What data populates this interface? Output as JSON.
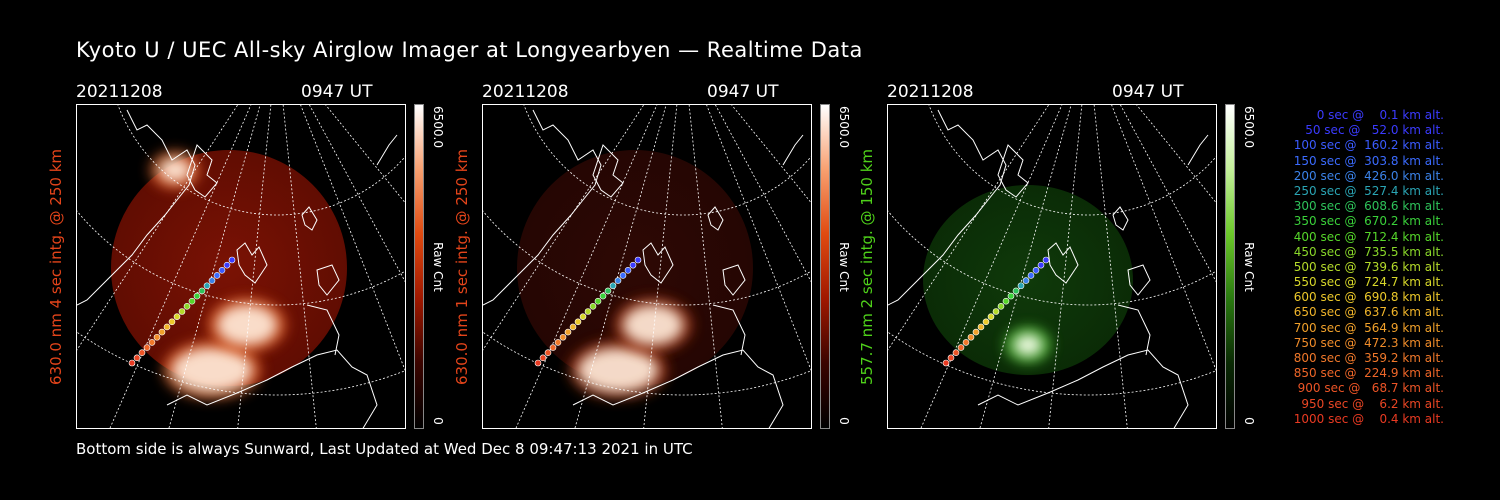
{
  "title": "Kyoto U / UEC All-sky Airglow Imager at Longyearbyen — Realtime Data",
  "footer": "Bottom side is always Sunward, Last Updated at Wed Dec  8 09:47:13 2021 in UTC",
  "panels": [
    {
      "date": "20211208",
      "time": "0947 UT",
      "ylabel": "630.0 nm 4 sec intg. @ 250 km",
      "ylabel_color": "#e4441a",
      "cbar_max": "6500.0",
      "cbar_min": "0",
      "cbar_unit": "Raw Cnt",
      "theme": "red"
    },
    {
      "date": "20211208",
      "time": "0947 UT",
      "ylabel": "630.0 nm 1 sec intg. @ 250 km",
      "ylabel_color": "#e4441a",
      "cbar_max": "6500.0",
      "cbar_min": "0",
      "cbar_unit": "Raw Cnt",
      "theme": "darkred"
    },
    {
      "date": "20211208",
      "time": "0947 UT",
      "ylabel": "557.7 nm 2 sec intg. @ 150 km",
      "ylabel_color": "#4fd11a",
      "cbar_max": "6500.0",
      "cbar_min": "0",
      "cbar_unit": "Raw Cnt",
      "theme": "green"
    }
  ],
  "legend": [
    {
      "text": "0 sec @    0.1 km alt.",
      "color": "#3b3bff"
    },
    {
      "text": "50 sec @   52.0 km alt.",
      "color": "#3b3bff"
    },
    {
      "text": "100 sec @  160.2 km alt.",
      "color": "#3b5bff"
    },
    {
      "text": "150 sec @  303.8 km alt.",
      "color": "#3b6bff"
    },
    {
      "text": "200 sec @  426.0 km alt.",
      "color": "#3b82e8"
    },
    {
      "text": "250 sec @  527.4 km alt.",
      "color": "#2aa4b4"
    },
    {
      "text": "300 sec @  608.6 km alt.",
      "color": "#2ec25a"
    },
    {
      "text": "350 sec @  670.2 km alt.",
      "color": "#3ad13a"
    },
    {
      "text": "400 sec @  712.4 km alt.",
      "color": "#56d62a"
    },
    {
      "text": "450 sec @  735.5 km alt.",
      "color": "#8ad82a"
    },
    {
      "text": "500 sec @  739.6 km alt.",
      "color": "#b4da2a"
    },
    {
      "text": "550 sec @  724.7 km alt.",
      "color": "#d8d82a"
    },
    {
      "text": "600 sec @  690.8 km alt.",
      "color": "#ecc92a"
    },
    {
      "text": "650 sec @  637.6 km alt.",
      "color": "#f0b42a"
    },
    {
      "text": "700 sec @  564.9 km alt.",
      "color": "#f0a02a"
    },
    {
      "text": "750 sec @  472.3 km alt.",
      "color": "#f08c2a"
    },
    {
      "text": "800 sec @  359.2 km alt.",
      "color": "#f0782a"
    },
    {
      "text": "850 sec @  224.9 km alt.",
      "color": "#ee6628"
    },
    {
      "text": "900 sec @   68.7 km alt.",
      "color": "#ec5426"
    },
    {
      "text": "950 sec @    6.2 km alt.",
      "color": "#ea4624"
    },
    {
      "text": "1000 sec @    0.4 km alt.",
      "color": "#e83a22"
    }
  ]
}
